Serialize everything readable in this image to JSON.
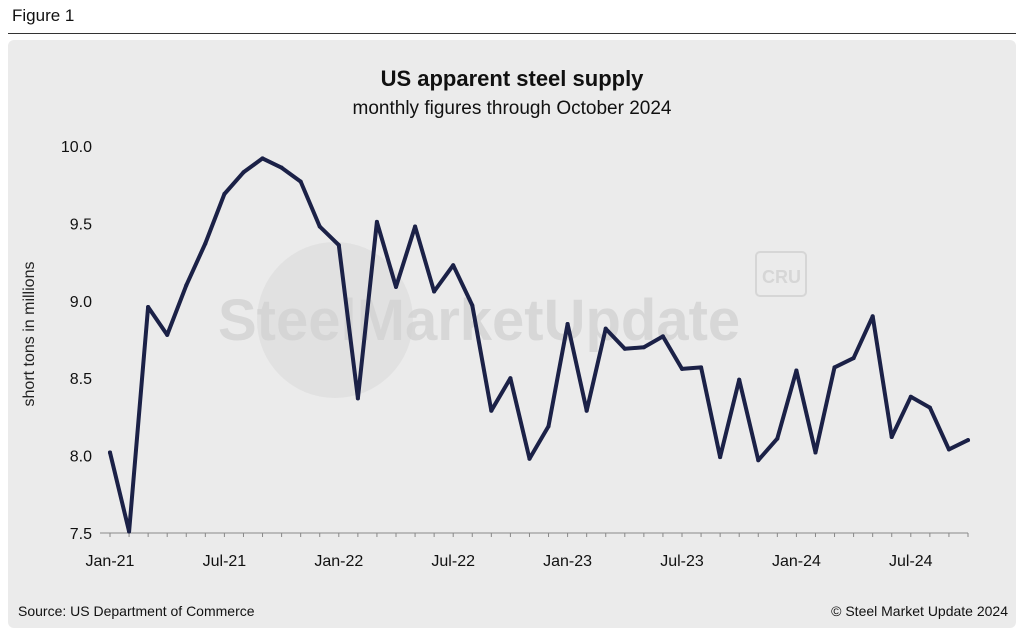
{
  "figure_label": "Figure 1",
  "watermark": {
    "text": "SteelMarketUpdate",
    "badge": "CRU"
  },
  "source": "Source: US Department of Commerce",
  "copyright": "© Steel Market Update 2024",
  "colors": {
    "line": "#1b2147",
    "panel": "#ebebeb",
    "axis": "#555555"
  },
  "chart_data": {
    "type": "line",
    "title": "US apparent steel supply",
    "subtitle": "monthly figures through October 2024",
    "xlabel": "",
    "ylabel": "short tons in millions",
    "ylim": [
      7.5,
      10.0
    ],
    "yticks": [
      7.5,
      8.0,
      8.5,
      9.0,
      9.5,
      10.0
    ],
    "ytick_labels": [
      "7.5",
      "8.0",
      "8.5",
      "9.0",
      "9.5",
      "10.0"
    ],
    "xtick_labels": [
      "Jan-21",
      "Jul-21",
      "Jan-22",
      "Jul-22",
      "Jan-23",
      "Jul-23",
      "Jan-24",
      "Jul-24"
    ],
    "xtick_positions": [
      "2021-01",
      "2021-07",
      "2022-01",
      "2022-07",
      "2023-01",
      "2023-07",
      "2024-01",
      "2024-07"
    ],
    "grid": false,
    "x": [
      "2021-01",
      "2021-02",
      "2021-03",
      "2021-04",
      "2021-05",
      "2021-06",
      "2021-07",
      "2021-08",
      "2021-09",
      "2021-10",
      "2021-11",
      "2021-12",
      "2022-01",
      "2022-02",
      "2022-03",
      "2022-04",
      "2022-05",
      "2022-06",
      "2022-07",
      "2022-08",
      "2022-09",
      "2022-10",
      "2022-11",
      "2022-12",
      "2023-01",
      "2023-02",
      "2023-03",
      "2023-04",
      "2023-05",
      "2023-06",
      "2023-07",
      "2023-08",
      "2023-09",
      "2023-10",
      "2023-11",
      "2023-12",
      "2024-01",
      "2024-02",
      "2024-03",
      "2024-04",
      "2024-05",
      "2024-06",
      "2024-07",
      "2024-08",
      "2024-09",
      "2024-10"
    ],
    "series": [
      {
        "values": [
          8.02,
          7.51,
          8.96,
          8.78,
          9.1,
          9.37,
          9.69,
          9.83,
          9.92,
          9.86,
          9.77,
          9.48,
          9.36,
          8.37,
          9.51,
          9.09,
          9.48,
          9.06,
          9.23,
          8.97,
          8.29,
          8.5,
          7.98,
          8.19,
          8.85,
          8.29,
          8.82,
          8.69,
          8.7,
          8.77,
          8.56,
          8.57,
          7.99,
          8.49,
          7.97,
          8.11,
          8.55,
          8.02,
          8.57,
          8.63,
          8.9,
          8.12,
          8.38,
          8.31,
          8.04,
          8.1
        ]
      }
    ]
  }
}
